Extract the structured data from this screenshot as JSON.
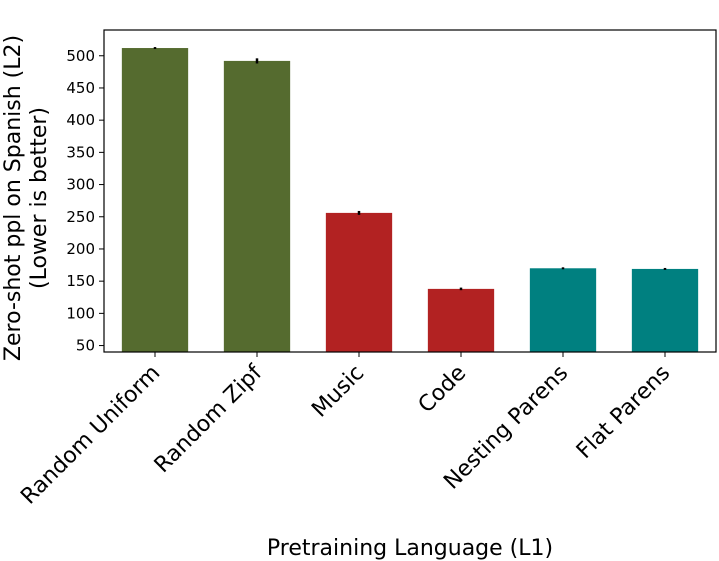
{
  "chart_data": {
    "type": "bar",
    "title": "",
    "xlabel": "Pretraining Language (L1)",
    "ylabel_lines": [
      "Zero-shot ppl on Spanish (L2)",
      "(Lower is better)"
    ],
    "categories": [
      "Random Uniform",
      "Random Zipf",
      "Music",
      "Code",
      "Nesting Parens",
      "Flat Parens"
    ],
    "values": [
      512,
      492,
      256,
      138,
      170,
      169
    ],
    "errors": [
      1.5,
      4,
      3,
      2,
      1.5,
      1.5
    ],
    "colors": [
      "#556b2f",
      "#556b2f",
      "#b22222",
      "#b22222",
      "#008080",
      "#008080"
    ],
    "yticks": [
      50,
      100,
      150,
      200,
      250,
      300,
      350,
      400,
      450,
      500
    ],
    "ylim": [
      40,
      540
    ],
    "grid": false,
    "legend": "none"
  }
}
